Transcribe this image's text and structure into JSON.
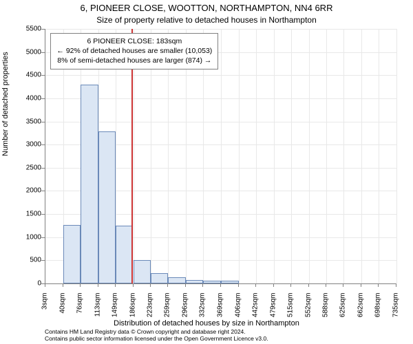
{
  "title": {
    "line1": "6, PIONEER CLOSE, WOOTTON, NORTHAMPTON, NN4 6RR",
    "line2": "Size of property relative to detached houses in Northampton"
  },
  "chart": {
    "type": "histogram",
    "xlabel": "Distribution of detached houses by size in Northampton",
    "ylabel": "Number of detached properties",
    "ylim": [
      0,
      5500
    ],
    "ytick_step": 500,
    "xlim": [
      3,
      735
    ],
    "xticks": [
      3,
      40,
      76,
      113,
      149,
      186,
      223,
      259,
      296,
      332,
      369,
      406,
      442,
      479,
      515,
      552,
      588,
      625,
      662,
      698,
      735
    ],
    "xtick_unit": "sqm",
    "background_color": "#ffffff",
    "grid_color": "#e8e8e8",
    "axis_color": "#808080",
    "bar_fill": "#dbe6f4",
    "bar_stroke": "#6a89b8",
    "bars": [
      {
        "x0": 40,
        "x1": 76,
        "value": 1260
      },
      {
        "x0": 76,
        "x1": 113,
        "value": 4300
      },
      {
        "x0": 113,
        "x1": 149,
        "value": 3280
      },
      {
        "x0": 149,
        "x1": 186,
        "value": 1250
      },
      {
        "x0": 186,
        "x1": 223,
        "value": 500
      },
      {
        "x0": 223,
        "x1": 259,
        "value": 230
      },
      {
        "x0": 259,
        "x1": 296,
        "value": 140
      },
      {
        "x0": 296,
        "x1": 332,
        "value": 70
      },
      {
        "x0": 332,
        "x1": 369,
        "value": 65
      },
      {
        "x0": 369,
        "x1": 406,
        "value": 55
      }
    ],
    "reference_line": {
      "x": 183,
      "color": "#cc3333",
      "width": 2
    },
    "annotation": {
      "line1": "6 PIONEER CLOSE: 183sqm",
      "line2": "← 92% of detached houses are smaller (10,053)",
      "line3": "8% of semi-detached houses are larger (874) →",
      "border_color": "#808080",
      "bg_color": "#ffffff",
      "fontsize": 10.5
    },
    "label_fontsize": 11,
    "tick_fontsize": 10,
    "title_fontsize1": 13,
    "title_fontsize2": 12
  },
  "attribution": {
    "line1": "Contains HM Land Registry data © Crown copyright and database right 2024.",
    "line2": "Contains public sector information licensed under the Open Government Licence v3.0."
  }
}
